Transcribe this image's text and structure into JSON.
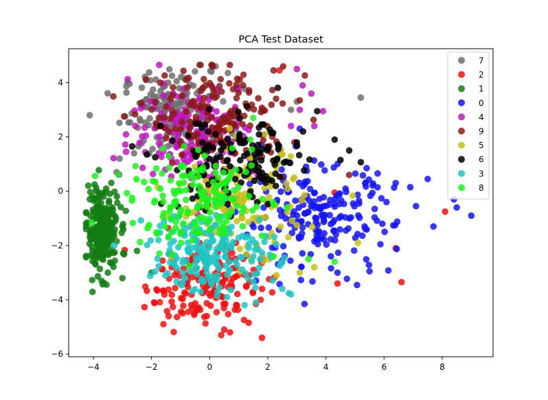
{
  "chart_data": {
    "type": "scatter",
    "title": "PCA Test Dataset",
    "xlabel": "",
    "ylabel": "",
    "xlim": [
      -4.85,
      9.75
    ],
    "ylim": [
      -6.1,
      5.25
    ],
    "x_ticks": [
      -4,
      -2,
      0,
      2,
      4,
      6,
      8
    ],
    "y_ticks": [
      -6,
      -4,
      -2,
      0,
      2,
      4
    ],
    "grid": false,
    "legend_position": "top-right",
    "series": [
      {
        "name": "7",
        "color": "#6e6e6e",
        "cluster": {
          "cx": -1.2,
          "cy": 2.9,
          "sx": 0.9,
          "sy": 0.75,
          "n": 170
        },
        "points": [
          [
            0.2,
            4.6
          ],
          [
            5.2,
            3.45
          ],
          [
            3.0,
            3.3
          ],
          [
            2.8,
            3.0
          ],
          [
            -2.6,
            1.4
          ],
          [
            -3.1,
            1.2
          ],
          [
            -3.2,
            0.7
          ]
        ]
      },
      {
        "name": "2",
        "color": "#ee1111",
        "cluster": {
          "cx": -0.2,
          "cy": -3.4,
          "sx": 1.0,
          "sy": 0.75,
          "n": 165
        },
        "points": [
          [
            1.8,
            -5.4
          ],
          [
            0.5,
            -5.1
          ],
          [
            0.4,
            -5.3
          ],
          [
            0.7,
            -5.2
          ],
          [
            -0.1,
            -4.6
          ],
          [
            6.6,
            -3.35
          ],
          [
            8.1,
            -0.75
          ],
          [
            6.4,
            -2.1
          ],
          [
            4.4,
            -3.4
          ],
          [
            4.3,
            -0.05
          ],
          [
            2.4,
            4.45
          ]
        ]
      },
      {
        "name": "1",
        "color": "#137d13",
        "cluster": {
          "cx": -3.7,
          "cy": -1.45,
          "sx": 0.28,
          "sy": 0.75,
          "n": 240
        },
        "points": [
          [
            -3.0,
            -3.2
          ],
          [
            -3.5,
            -3.0
          ],
          [
            -2.0,
            -3.0
          ],
          [
            -2.5,
            -2.2
          ],
          [
            -3.9,
            0.0
          ]
        ]
      },
      {
        "name": "0",
        "color": "#1515f0",
        "cluster": {
          "cx": 3.7,
          "cy": -1.0,
          "sx": 1.3,
          "sy": 0.95,
          "n": 210
        },
        "points": [
          [
            9.0,
            -0.9
          ],
          [
            8.4,
            -0.3
          ],
          [
            8.5,
            -0.6
          ],
          [
            7.7,
            -1.3
          ],
          [
            7.1,
            -0.55
          ],
          [
            6.9,
            0.15
          ],
          [
            7.5,
            0.45
          ],
          [
            6.4,
            0.3
          ],
          [
            5.5,
            -2.95
          ],
          [
            4.4,
            -3.0
          ],
          [
            3.1,
            2.3
          ],
          [
            5.4,
            0.85
          ]
        ]
      },
      {
        "name": "4",
        "color": "#c017c0",
        "cluster": {
          "cx": -0.5,
          "cy": 2.2,
          "sx": 1.1,
          "sy": 0.9,
          "n": 190
        },
        "points": [
          [
            3.0,
            4.5
          ],
          [
            3.2,
            3.9
          ],
          [
            3.5,
            3.6
          ],
          [
            3.1,
            3.0
          ],
          [
            3.9,
            2.95
          ],
          [
            3.6,
            2.4
          ],
          [
            2.8,
            2.4
          ]
        ]
      },
      {
        "name": "9",
        "color": "#8b1a1a",
        "cluster": {
          "cx": 0.3,
          "cy": 2.7,
          "sx": 1.2,
          "sy": 0.9,
          "n": 170
        },
        "points": [
          [
            2.2,
            4.45
          ],
          [
            -1.7,
            4.0
          ],
          [
            -0.8,
            4.1
          ],
          [
            3.1,
            3.35
          ],
          [
            4.8,
            0.6
          ]
        ]
      },
      {
        "name": "5",
        "color": "#c6c01b",
        "cluster": {
          "cx": 1.0,
          "cy": -0.5,
          "sx": 1.1,
          "sy": 1.0,
          "n": 150
        },
        "points": [
          [
            2.3,
            -3.1
          ],
          [
            3.1,
            -3.0
          ],
          [
            3.6,
            -2.8
          ],
          [
            5.1,
            -1.9
          ],
          [
            1.9,
            2.1
          ]
        ]
      },
      {
        "name": "6",
        "color": "#000000",
        "cluster": {
          "cx": 0.9,
          "cy": 1.0,
          "sx": 1.2,
          "sy": 0.85,
          "n": 155
        },
        "points": [
          [
            3.7,
            2.95
          ],
          [
            4.3,
            1.9
          ],
          [
            4.8,
            1.5
          ],
          [
            3.0,
            1.8
          ],
          [
            4.5,
            1.15
          ]
        ]
      },
      {
        "name": "3",
        "color": "#20c4c4",
        "cluster": {
          "cx": 0.1,
          "cy": -2.2,
          "sx": 1.1,
          "sy": 0.75,
          "n": 200
        },
        "points": [
          [
            2.8,
            -3.8
          ],
          [
            1.6,
            -4.1
          ],
          [
            1.2,
            -4.2
          ],
          [
            0.6,
            -3.9
          ],
          [
            2.5,
            -3.6
          ]
        ]
      },
      {
        "name": "8",
        "color": "#1cf21c",
        "cluster": {
          "cx": -0.3,
          "cy": -0.4,
          "sx": 1.2,
          "sy": 0.8,
          "n": 165
        },
        "points": [
          [
            4.3,
            -2.6
          ],
          [
            3.4,
            -2.5
          ],
          [
            2.2,
            -2.4
          ],
          [
            1.5,
            2.7
          ],
          [
            1.4,
            1.9
          ]
        ]
      }
    ]
  }
}
